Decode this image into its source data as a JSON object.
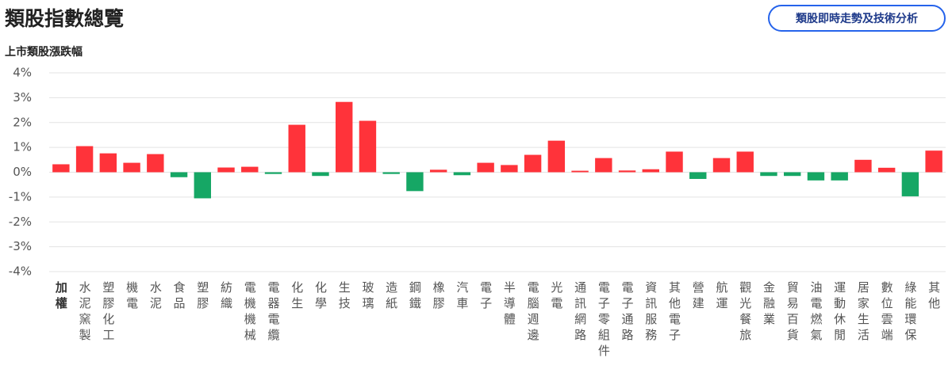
{
  "chart_data": {
    "type": "bar",
    "title": "類股指數總覽",
    "subtitle": "上市類股漲跌幅",
    "button": "類股即時走勢及技術分析",
    "categories": [
      "加權",
      "水泥窯製",
      "塑膠化工",
      "機電",
      "水泥",
      "食品",
      "塑膠",
      "紡織",
      "電機機械",
      "電器電纜",
      "化生",
      "化學",
      "生技",
      "玻璃",
      "造紙",
      "鋼鐵",
      "橡膠",
      "汽車",
      "電子",
      "半導體",
      "電腦週邊",
      "光電",
      "通訊網路",
      "電子零組件",
      "電子通路",
      "資訊服務",
      "其他電子",
      "營建",
      "航運",
      "觀光餐旅",
      "金融業",
      "貿易百貨",
      "油電燃氣",
      "運動休閒",
      "居家生活",
      "數位雲端",
      "綠能環保",
      "其他"
    ],
    "values": [
      0.32,
      1.05,
      0.76,
      0.38,
      0.73,
      -0.2,
      -1.05,
      0.19,
      0.22,
      -0.07,
      1.91,
      -0.15,
      2.83,
      2.07,
      -0.07,
      -0.76,
      0.1,
      -0.12,
      0.38,
      0.29,
      0.7,
      1.27,
      0.06,
      0.57,
      0.07,
      0.12,
      0.83,
      -0.27,
      0.57,
      0.83,
      -0.15,
      -0.15,
      -0.33,
      -0.33,
      0.5,
      0.18,
      -0.97,
      0.87
    ],
    "positive_color": "#ff333a",
    "negative_color": "#16a765",
    "ylim": [
      -4,
      4
    ],
    "yticks": [
      {
        "value": 4,
        "label": "4%"
      },
      {
        "value": 3,
        "label": "3%"
      },
      {
        "value": 2,
        "label": "2%"
      },
      {
        "value": 1,
        "label": "1%"
      },
      {
        "value": 0,
        "label": "0%"
      },
      {
        "value": -1,
        "label": "-1%"
      },
      {
        "value": -2,
        "label": "-2%"
      },
      {
        "value": -3,
        "label": "-3%"
      },
      {
        "value": -4,
        "label": "-4%"
      }
    ],
    "grid": true
  }
}
